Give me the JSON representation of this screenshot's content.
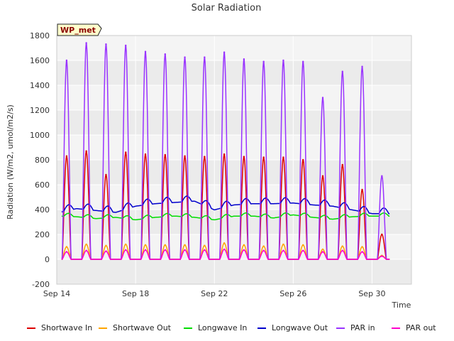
{
  "chart_data": {
    "type": "line",
    "title": "Solar Radiation",
    "xlabel": "Time",
    "ylabel": "Radiation (W/m2, umol/m2/s)",
    "annotation": "WP_met",
    "x_tick_labels": [
      "Sep 14",
      "Sep 18",
      "Sep 22",
      "Sep 26",
      "Sep 30"
    ],
    "x_tick_days": [
      14,
      18,
      22,
      26,
      30
    ],
    "x_range_days": [
      14,
      32
    ],
    "ylim": [
      -200,
      1800
    ],
    "y_ticks": [
      -200,
      0,
      200,
      400,
      600,
      800,
      1000,
      1200,
      1400,
      1600,
      1800
    ],
    "grid": true,
    "background_bands": [
      "#ebebeb",
      "#f4f4f4"
    ],
    "legend_placement": "bottom",
    "days": [
      "Sep 14",
      "Sep 15",
      "Sep 16",
      "Sep 17",
      "Sep 18",
      "Sep 19",
      "Sep 20",
      "Sep 21",
      "Sep 22",
      "Sep 23",
      "Sep 24",
      "Sep 25",
      "Sep 26",
      "Sep 27",
      "Sep 28",
      "Sep 29",
      "Sep 30"
    ],
    "series": [
      {
        "name": "Shortwave In",
        "color": "#dd0000",
        "kind": "daily_peak",
        "values": [
          830,
          870,
          680,
          860,
          845,
          840,
          830,
          825,
          845,
          825,
          820,
          820,
          800,
          670,
          760,
          560,
          200
        ]
      },
      {
        "name": "Shortwave Out",
        "color": "#ffa500",
        "kind": "daily_peak",
        "values": [
          100,
          120,
          110,
          120,
          115,
          115,
          115,
          110,
          130,
          115,
          105,
          120,
          115,
          80,
          105,
          100,
          30
        ]
      },
      {
        "name": "Longwave In",
        "color": "#00dd00",
        "kind": "daily_level",
        "values": [
          360,
          355,
          340,
          350,
          330,
          350,
          360,
          350,
          330,
          360,
          360,
          345,
          370,
          350,
          335,
          355,
          360
        ]
      },
      {
        "name": "Longwave Out",
        "color": "#0000cc",
        "kind": "daily_level",
        "values": [
          395,
          430,
          415,
          400,
          450,
          470,
          480,
          490,
          420,
          460,
          470,
          470,
          475,
          460,
          450,
          420,
          390
        ]
      },
      {
        "name": "PAR in",
        "color": "#9933ff",
        "kind": "daily_peak",
        "values": [
          1600,
          1740,
          1730,
          1720,
          1670,
          1650,
          1625,
          1625,
          1665,
          1610,
          1590,
          1600,
          1590,
          1300,
          1510,
          1550,
          670
        ]
      },
      {
        "name": "PAR out",
        "color": "#ff00cc",
        "kind": "daily_peak",
        "values": [
          60,
          70,
          65,
          75,
          75,
          75,
          75,
          75,
          80,
          75,
          70,
          70,
          70,
          60,
          70,
          60,
          25
        ]
      }
    ]
  }
}
